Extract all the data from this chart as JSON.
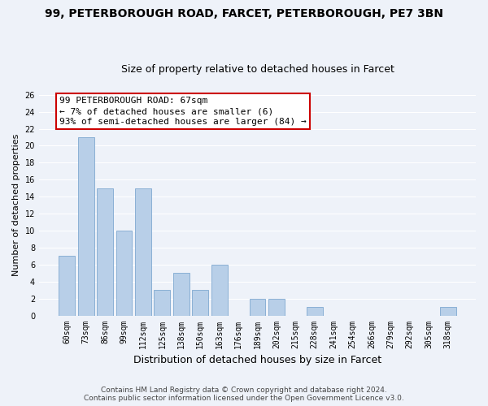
{
  "title": "99, PETERBOROUGH ROAD, FARCET, PETERBOROUGH, PE7 3BN",
  "subtitle": "Size of property relative to detached houses in Farcet",
  "xlabel": "Distribution of detached houses by size in Farcet",
  "ylabel": "Number of detached properties",
  "categories": [
    "60sqm",
    "73sqm",
    "86sqm",
    "99sqm",
    "112sqm",
    "125sqm",
    "138sqm",
    "150sqm",
    "163sqm",
    "176sqm",
    "189sqm",
    "202sqm",
    "215sqm",
    "228sqm",
    "241sqm",
    "254sqm",
    "266sqm",
    "279sqm",
    "292sqm",
    "305sqm",
    "318sqm"
  ],
  "values": [
    7,
    21,
    15,
    10,
    15,
    3,
    5,
    3,
    6,
    0,
    2,
    2,
    0,
    1,
    0,
    0,
    0,
    0,
    0,
    0,
    1
  ],
  "bar_color": "#b8cfe8",
  "annotation_text": "99 PETERBOROUGH ROAD: 67sqm\n← 7% of detached houses are smaller (6)\n93% of semi-detached houses are larger (84) →",
  "annotation_box_facecolor": "#ffffff",
  "annotation_box_edgecolor": "#cc0000",
  "ylim": [
    0,
    26
  ],
  "yticks": [
    0,
    2,
    4,
    6,
    8,
    10,
    12,
    14,
    16,
    18,
    20,
    22,
    24,
    26
  ],
  "footer_line1": "Contains HM Land Registry data © Crown copyright and database right 2024.",
  "footer_line2": "Contains public sector information licensed under the Open Government Licence v3.0.",
  "bg_color": "#eef2f9",
  "grid_color": "#ffffff",
  "title_fontsize": 10,
  "subtitle_fontsize": 9,
  "ylabel_fontsize": 8,
  "xlabel_fontsize": 9,
  "tick_label_fontsize": 7,
  "annotation_fontsize": 8,
  "footer_fontsize": 6.5
}
